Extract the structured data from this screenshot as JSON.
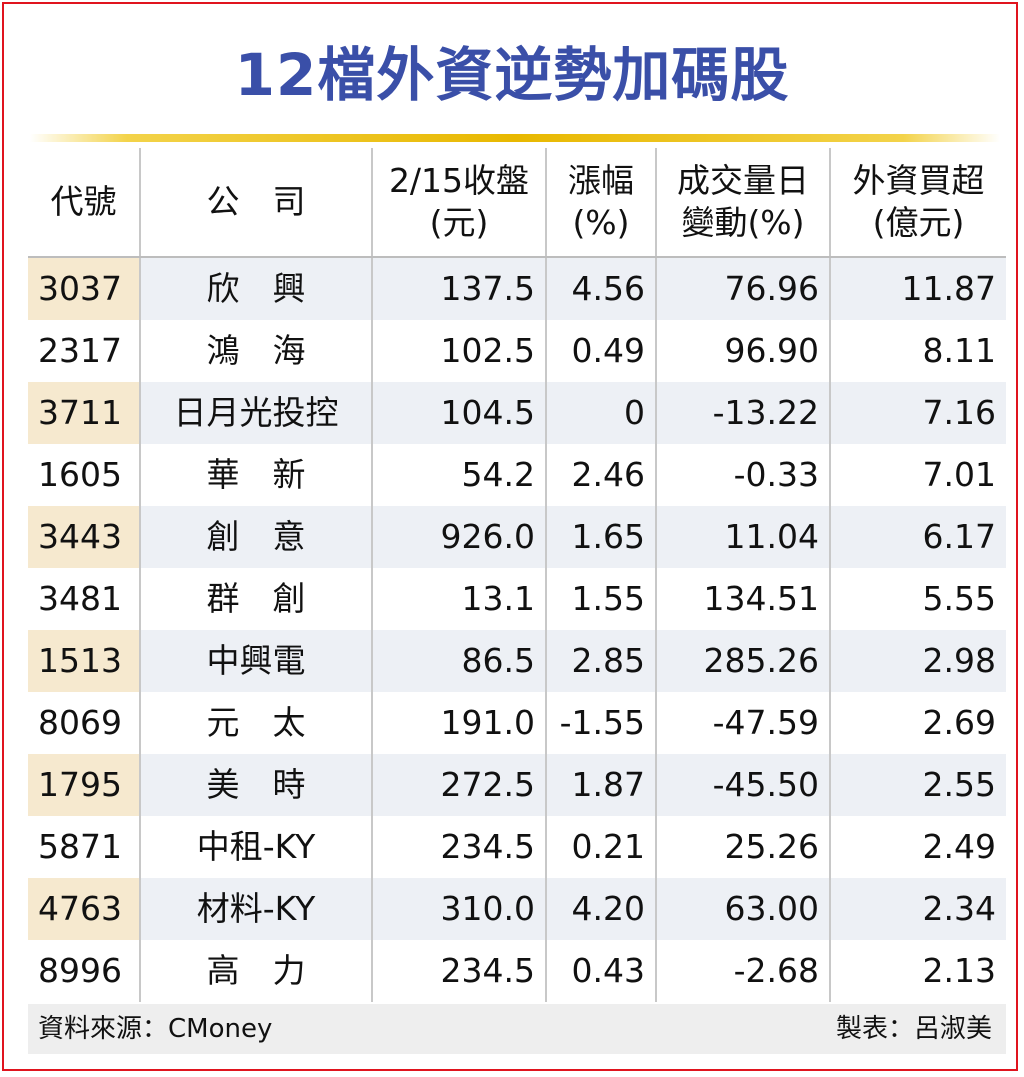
{
  "title": "12檔外資逆勢加碼股",
  "headers": {
    "code": "代號",
    "company": "公　司",
    "close_l1": "2/15收盤",
    "close_l2": "(元)",
    "change_l1": "漲幅",
    "change_l2": "(%)",
    "volume_l1": "成交量日",
    "volume_l2": "變動(%)",
    "foreign_l1": "外資買超",
    "foreign_l2": "(億元)"
  },
  "rows": [
    {
      "code": "3037",
      "name": "欣　興",
      "close": "137.5",
      "change": "4.56",
      "volume": "76.96",
      "foreign": "11.87"
    },
    {
      "code": "2317",
      "name": "鴻　海",
      "close": "102.5",
      "change": "0.49",
      "volume": "96.90",
      "foreign": "8.11"
    },
    {
      "code": "3711",
      "name": "日月光投控",
      "close": "104.5",
      "change": "0",
      "volume": "-13.22",
      "foreign": "7.16"
    },
    {
      "code": "1605",
      "name": "華　新",
      "close": "54.2",
      "change": "2.46",
      "volume": "-0.33",
      "foreign": "7.01"
    },
    {
      "code": "3443",
      "name": "創　意",
      "close": "926.0",
      "change": "1.65",
      "volume": "11.04",
      "foreign": "6.17"
    },
    {
      "code": "3481",
      "name": "群　創",
      "close": "13.1",
      "change": "1.55",
      "volume": "134.51",
      "foreign": "5.55"
    },
    {
      "code": "1513",
      "name": "中興電",
      "close": "86.5",
      "change": "2.85",
      "volume": "285.26",
      "foreign": "2.98"
    },
    {
      "code": "8069",
      "name": "元　太",
      "close": "191.0",
      "change": "-1.55",
      "volume": "-47.59",
      "foreign": "2.69"
    },
    {
      "code": "1795",
      "name": "美　時",
      "close": "272.5",
      "change": "1.87",
      "volume": "-45.50",
      "foreign": "2.55"
    },
    {
      "code": "5871",
      "name": "中租-KY",
      "close": "234.5",
      "change": "0.21",
      "volume": "25.26",
      "foreign": "2.49"
    },
    {
      "code": "4763",
      "name": "材料-KY",
      "close": "310.0",
      "change": "4.20",
      "volume": "63.00",
      "foreign": "2.34"
    },
    {
      "code": "8996",
      "name": "高　力",
      "close": "234.5",
      "change": "0.43",
      "volume": "-2.68",
      "foreign": "2.13"
    }
  ],
  "footer": {
    "source": "資料來源：CMoney",
    "maker": "製表：呂淑美"
  },
  "colors": {
    "border": "#e0141e",
    "title": "#3a4fa8",
    "rule": "#e8b800",
    "row_shade": "#edf0f5",
    "code_shade": "#f6e9cf",
    "footer_bg": "#eeeeee"
  }
}
